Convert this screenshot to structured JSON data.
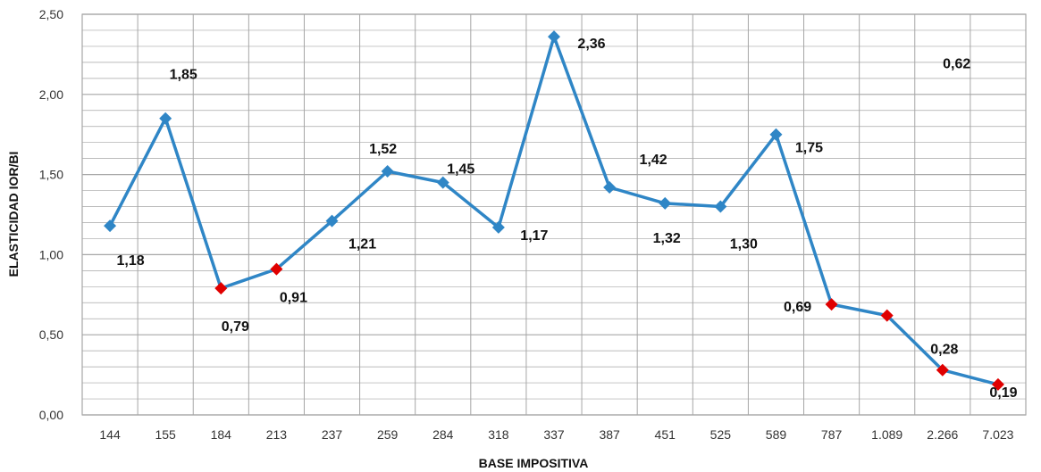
{
  "chart_data": {
    "type": "line",
    "xlabel": "BASE IMPOSITIVA",
    "ylabel": "ELASTICIDAD IOR/BI",
    "categories": [
      "144",
      "155",
      "184",
      "213",
      "237",
      "259",
      "284",
      "318",
      "337",
      "387",
      "451",
      "525",
      "589",
      "787",
      "1.089",
      "2.266",
      "7.023"
    ],
    "series": [
      {
        "values": [
          1.18,
          1.85,
          0.79,
          0.91,
          1.21,
          1.52,
          1.45,
          1.17,
          2.36,
          1.42,
          1.32,
          1.3,
          1.75,
          0.69,
          0.62,
          0.28,
          0.19
        ],
        "labels": [
          "1,18",
          "1,85",
          "0,79",
          "0,91",
          "1,21",
          "1,52",
          "1,45",
          "1,17",
          "2,36",
          "1,42",
          "1,32",
          "1,30",
          "1,75",
          "0,69",
          "0,62",
          "0,28",
          "0,19"
        ],
        "marker_colors": [
          "#2f86c6",
          "#2f86c6",
          "#e00000",
          "#e00000",
          "#2f86c6",
          "#2f86c6",
          "#2f86c6",
          "#2f86c6",
          "#2f86c6",
          "#2f86c6",
          "#2f86c6",
          "#2f86c6",
          "#2f86c6",
          "#e00000",
          "#e00000",
          "#e00000",
          "#e00000"
        ]
      }
    ],
    "yticks": [
      "0,00",
      "0,50",
      "1,00",
      "1,50",
      "2,00",
      "2,50"
    ],
    "ylim": [
      0,
      2.5
    ],
    "grid": true,
    "line_color": "#2f86c6",
    "highlight_color": "#e00000",
    "grid_color": "#a6a6a6"
  }
}
